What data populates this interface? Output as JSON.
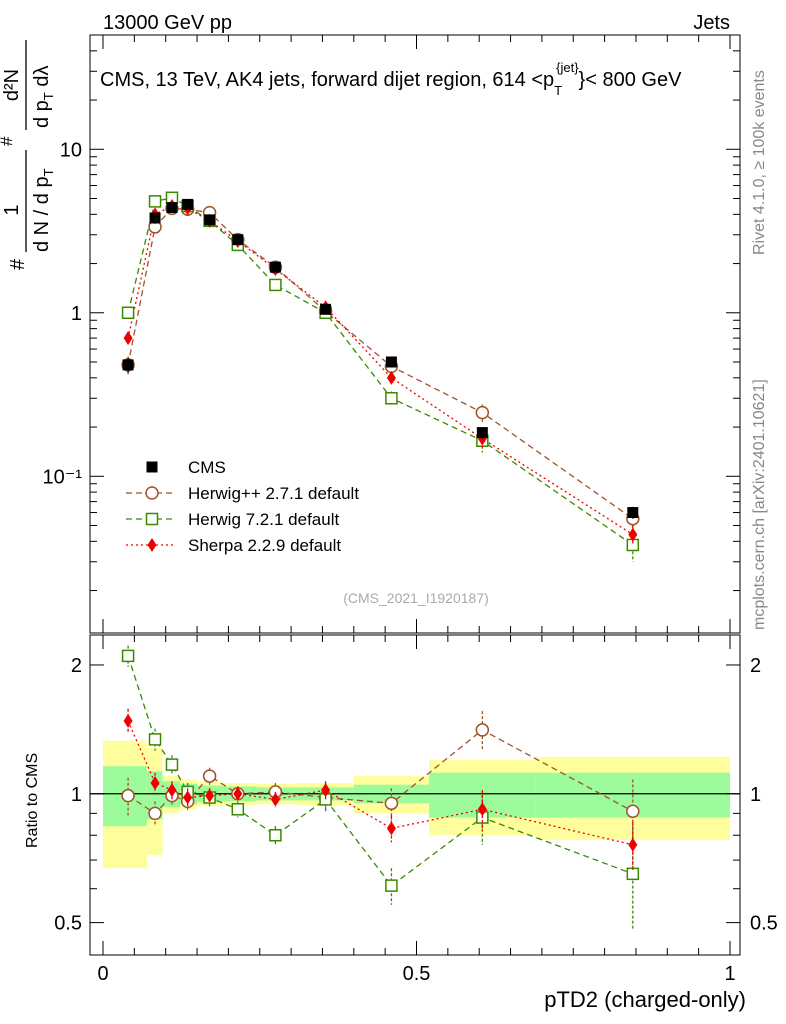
{
  "header": {
    "left": "13000 GeV pp",
    "right": "Jets"
  },
  "main_title": "CMS, 13 TeV, AK4 jets, forward dijet region, 614 <p",
  "main_title_sup": "{jet}",
  "main_title_sub": "T",
  "main_title_end": "}< 800 GeV",
  "side_text_top": "Rivet 4.1.0, ≥ 100k events",
  "side_text_bottom": "mcplots.cern.ch [arXiv:2401.10621]",
  "watermark": "(CMS_2021_I1920187)",
  "ylabel_main": {
    "frac1_num": "1",
    "frac1_den": "d N / d p",
    "frac1_den_sub": "T",
    "frac2_num": "d²N",
    "frac2_den": "d p",
    "frac2_den_sub": "T",
    "frac2_den_end": " dλ",
    "hash": "#"
  },
  "ylabel_ratio": "Ratio to CMS",
  "xlabel": "pTD2 (charged-only)",
  "colors": {
    "cms": "#000000",
    "herwigpp": "#a0522d",
    "herwig7": "#3a8a00",
    "sherpa": "#ee0000",
    "band_inner": "#9cfc9c",
    "band_outer": "#fefe9c"
  },
  "legend": [
    {
      "key": "cms",
      "label": "CMS"
    },
    {
      "key": "herwigpp",
      "label": "Herwig++ 2.7.1 default"
    },
    {
      "key": "herwig7",
      "label": "Herwig 7.2.1 default"
    },
    {
      "key": "sherpa",
      "label": "Sherpa 2.2.9 default"
    }
  ],
  "chart_data": {
    "type": "scatter",
    "x_range": [
      0,
      1
    ],
    "main_y_log": true,
    "main_y_range": [
      0.011,
      50
    ],
    "main_y_ticks": [
      {
        "v": 10,
        "label": "10"
      },
      {
        "v": 1,
        "label": "1"
      },
      {
        "v": 0.1,
        "label": "10⁻¹"
      }
    ],
    "ratio_y_log": true,
    "ratio_y_range": [
      0.42,
      2.35
    ],
    "ratio_y_ticks": [
      {
        "v": 2,
        "label": "2"
      },
      {
        "v": 1,
        "label": "1"
      },
      {
        "v": 0.5,
        "label": "0.5"
      }
    ],
    "x_ticks": [
      {
        "v": 0,
        "label": "0"
      },
      {
        "v": 0.5,
        "label": "0.5"
      },
      {
        "v": 1,
        "label": "1"
      }
    ],
    "x": [
      0.04,
      0.083,
      0.11,
      0.135,
      0.17,
      0.215,
      0.275,
      0.355,
      0.46,
      0.605,
      0.845
    ],
    "bin_edges": [
      0,
      0.07,
      0.095,
      0.123,
      0.15,
      0.19,
      0.245,
      0.31,
      0.4,
      0.52,
      0.69,
      1.0
    ],
    "band_inner": [
      0.16,
      0.13,
      0.07,
      0.055,
      0.045,
      0.04,
      0.035,
      0.035,
      0.05,
      0.12,
      0.12
    ],
    "band_outer": [
      0.33,
      0.28,
      0.1,
      0.08,
      0.065,
      0.06,
      0.055,
      0.06,
      0.1,
      0.2,
      0.22
    ],
    "series": [
      {
        "key": "cms",
        "name": "CMS",
        "marker": "filled-square",
        "values": [
          0.48,
          3.8,
          4.4,
          4.6,
          3.7,
          2.8,
          1.9,
          1.05,
          0.5,
          0.185,
          0.06
        ],
        "errors": [
          0.05,
          0.3,
          0.2,
          0.2,
          0.15,
          0.1,
          0.07,
          0.04,
          0.03,
          0.015,
          0.005
        ]
      },
      {
        "key": "herwigpp",
        "name": "Herwig++ 2.7.1 default",
        "marker": "open-circle",
        "dash": "6,4",
        "values": [
          0.48,
          3.35,
          4.35,
          4.3,
          4.1,
          2.8,
          1.9,
          1.02,
          0.47,
          0.245,
          0.055
        ],
        "errors": [
          0.06,
          0.25,
          0.2,
          0.2,
          0.15,
          0.1,
          0.07,
          0.05,
          0.04,
          0.03,
          0.008
        ],
        "ratio": [
          0.99,
          0.9,
          0.99,
          0.96,
          1.1,
          1.0,
          1.01,
          0.98,
          0.95,
          1.41,
          0.91
        ],
        "ratio_err": [
          0.1,
          0.06,
          0.05,
          0.05,
          0.05,
          0.04,
          0.05,
          0.06,
          0.08,
          0.15,
          0.17
        ]
      },
      {
        "key": "herwig7",
        "name": "Herwig 7.2.1 default",
        "marker": "open-square",
        "dash": "6,4",
        "values": [
          1.0,
          4.8,
          5.05,
          4.5,
          3.65,
          2.6,
          1.48,
          1.0,
          0.3,
          0.165,
          0.038
        ],
        "errors": [
          0.06,
          0.3,
          0.25,
          0.2,
          0.15,
          0.1,
          0.07,
          0.05,
          0.03,
          0.025,
          0.008
        ],
        "ratio": [
          2.1,
          1.34,
          1.17,
          1.01,
          0.98,
          0.92,
          0.8,
          0.97,
          0.61,
          0.88,
          0.65
        ],
        "ratio_err": [
          0.12,
          0.08,
          0.06,
          0.05,
          0.05,
          0.04,
          0.04,
          0.06,
          0.06,
          0.12,
          0.17
        ]
      },
      {
        "key": "sherpa",
        "name": "Sherpa 2.2.9 default",
        "marker": "filled-diamond",
        "dash": "2,3",
        "values": [
          0.7,
          4.0,
          4.5,
          4.35,
          3.65,
          2.75,
          1.85,
          1.08,
          0.4,
          0.17,
          0.044
        ],
        "errors": [
          0.05,
          0.3,
          0.2,
          0.2,
          0.15,
          0.1,
          0.07,
          0.05,
          0.03,
          0.02,
          0.006
        ],
        "ratio": [
          1.48,
          1.06,
          1.02,
          0.98,
          0.99,
          1.0,
          0.97,
          1.02,
          0.83,
          0.92,
          0.76
        ],
        "ratio_err": [
          0.1,
          0.06,
          0.05,
          0.05,
          0.04,
          0.04,
          0.04,
          0.05,
          0.06,
          0.1,
          0.1
        ]
      }
    ]
  }
}
